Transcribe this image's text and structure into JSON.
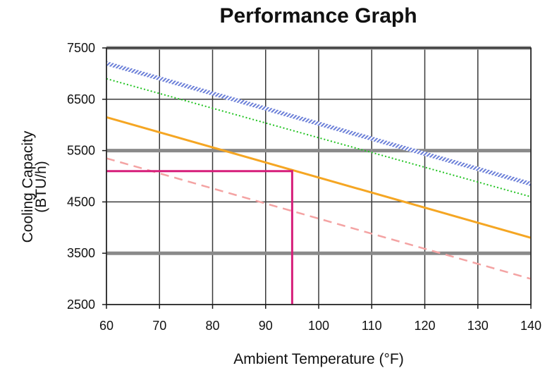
{
  "chart_data": {
    "type": "line",
    "title": "Performance Graph",
    "xlabel": "Ambient Temperature (°F)",
    "ylabel_line1": "Cooling Capacity",
    "ylabel_line2": "(BTU/h)",
    "xlim": [
      60,
      140
    ],
    "ylim": [
      2500,
      7500
    ],
    "x_ticks": [
      60,
      70,
      80,
      90,
      100,
      110,
      120,
      130,
      140
    ],
    "y_ticks": [
      2500,
      3500,
      4500,
      5500,
      6500,
      7500
    ],
    "grid": true,
    "legend": "none",
    "series": [
      {
        "color": "#6b7fd8",
        "style": "hatched",
        "x": [
          60,
          140
        ],
        "y": [
          7200,
          4850
        ]
      },
      {
        "color": "#22c322",
        "style": "dotted",
        "x": [
          60,
          140
        ],
        "y": [
          6900,
          4600
        ]
      },
      {
        "color": "#f5a623",
        "style": "solid",
        "x": [
          60,
          140
        ],
        "y": [
          6150,
          3800
        ]
      },
      {
        "color": "#f4a3a3",
        "style": "dashed",
        "x": [
          60,
          140
        ],
        "y": [
          5350,
          3000
        ]
      }
    ],
    "annotation": {
      "color": "#d61f7a",
      "x": 95,
      "y": 5100
    }
  }
}
